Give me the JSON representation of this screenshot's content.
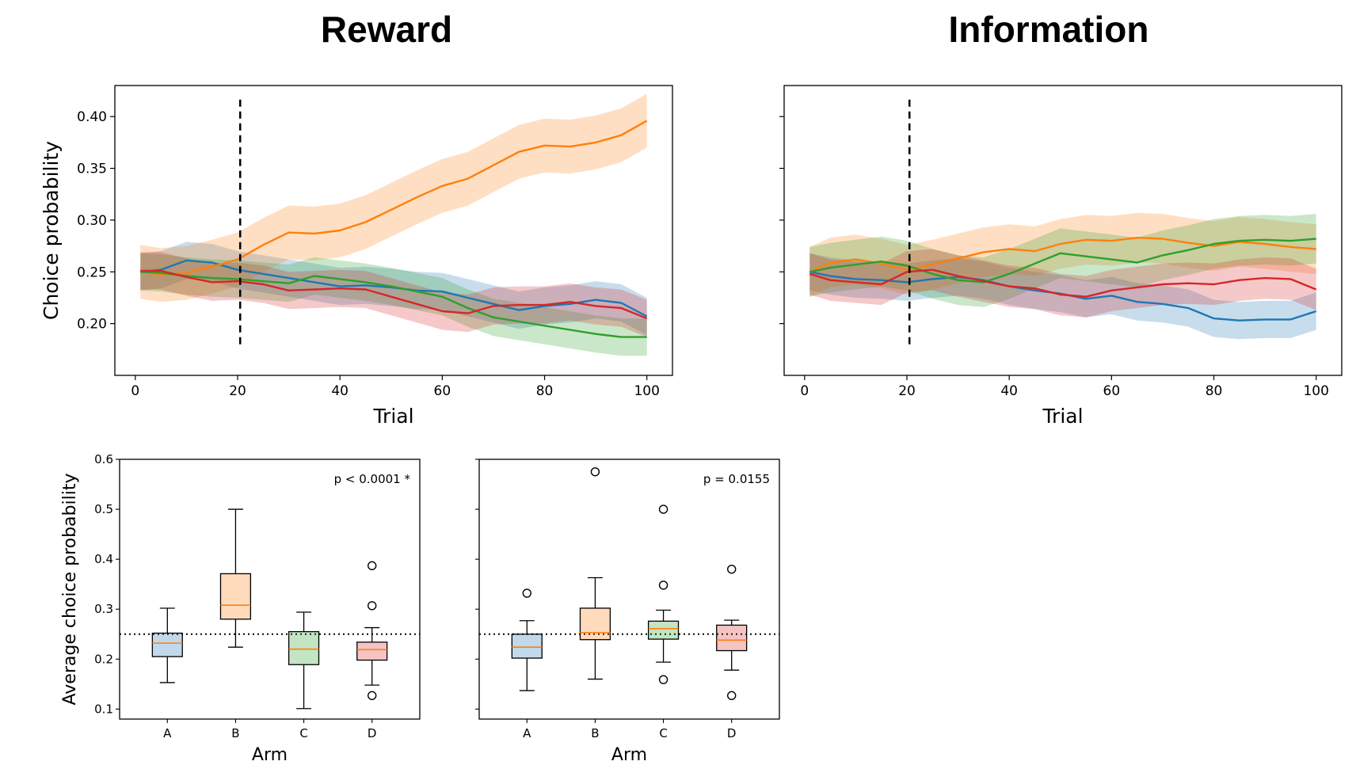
{
  "titles": {
    "left": "Reward",
    "right": "Information"
  },
  "colors": {
    "A": "#1f77b4",
    "B": "#ff7f0e",
    "C": "#2ca02c",
    "D": "#d62728"
  },
  "chart_data": [
    {
      "type": "line",
      "panel": "reward-lines",
      "title": "Reward",
      "xlabel": "Trial",
      "ylabel": "Choice probability",
      "xlim": [
        -4,
        105
      ],
      "ylim": [
        0.15,
        0.43
      ],
      "xticks": [
        0,
        20,
        40,
        60,
        80,
        100
      ],
      "yticks": [
        0.2,
        0.25,
        0.3,
        0.35,
        0.4
      ],
      "ytick_labels": [
        "0.20",
        "0.25",
        "0.30",
        "0.35",
        "0.40"
      ],
      "vline": {
        "x": 20.5,
        "style": "dashed",
        "y_range": [
          0.18,
          0.42
        ]
      },
      "series": [
        {
          "arm": "A",
          "color": "#1f77b4",
          "x": [
            1,
            5,
            10,
            15,
            20,
            25,
            30,
            35,
            40,
            45,
            50,
            55,
            60,
            65,
            70,
            75,
            80,
            85,
            90,
            95,
            100
          ],
          "y": [
            0.25,
            0.252,
            0.261,
            0.259,
            0.252,
            0.248,
            0.244,
            0.24,
            0.236,
            0.237,
            0.235,
            0.232,
            0.231,
            0.225,
            0.219,
            0.213,
            0.217,
            0.219,
            0.223,
            0.22,
            0.207
          ],
          "band": 0.018
        },
        {
          "arm": "B",
          "color": "#ff7f0e",
          "x": [
            1,
            5,
            10,
            15,
            20,
            25,
            30,
            35,
            40,
            45,
            50,
            55,
            60,
            65,
            70,
            75,
            80,
            85,
            90,
            95,
            100
          ],
          "y": [
            0.25,
            0.247,
            0.249,
            0.255,
            0.262,
            0.276,
            0.288,
            0.287,
            0.29,
            0.298,
            0.31,
            0.322,
            0.333,
            0.34,
            0.353,
            0.366,
            0.372,
            0.371,
            0.375,
            0.382,
            0.396
          ],
          "band": 0.026
        },
        {
          "arm": "C",
          "color": "#2ca02c",
          "x": [
            1,
            5,
            10,
            15,
            20,
            25,
            30,
            35,
            40,
            45,
            50,
            55,
            60,
            65,
            70,
            75,
            80,
            85,
            90,
            95,
            100
          ],
          "y": [
            0.25,
            0.249,
            0.246,
            0.244,
            0.243,
            0.241,
            0.239,
            0.246,
            0.243,
            0.24,
            0.236,
            0.231,
            0.226,
            0.215,
            0.206,
            0.202,
            0.198,
            0.194,
            0.19,
            0.187,
            0.187
          ],
          "band": 0.018
        },
        {
          "arm": "D",
          "color": "#d62728",
          "x": [
            1,
            5,
            10,
            15,
            20,
            25,
            30,
            35,
            40,
            45,
            50,
            55,
            60,
            65,
            70,
            75,
            80,
            85,
            90,
            95,
            100
          ],
          "y": [
            0.251,
            0.251,
            0.245,
            0.24,
            0.241,
            0.238,
            0.232,
            0.233,
            0.234,
            0.233,
            0.226,
            0.219,
            0.212,
            0.21,
            0.217,
            0.218,
            0.218,
            0.221,
            0.217,
            0.215,
            0.205
          ],
          "band": 0.018
        }
      ]
    },
    {
      "type": "line",
      "panel": "information-lines",
      "title": "Information",
      "xlabel": "Trial",
      "ylabel": "",
      "xlim": [
        -4,
        105
      ],
      "ylim": [
        0.15,
        0.43
      ],
      "xticks": [
        0,
        20,
        40,
        60,
        80,
        100
      ],
      "yticks": [
        0.2,
        0.25,
        0.3,
        0.35,
        0.4
      ],
      "vline": {
        "x": 20.5,
        "style": "dashed",
        "y_range": [
          0.18,
          0.42
        ]
      },
      "series": [
        {
          "arm": "A",
          "color": "#1f77b4",
          "x": [
            1,
            5,
            10,
            15,
            20,
            25,
            30,
            35,
            40,
            45,
            50,
            55,
            60,
            65,
            70,
            75,
            80,
            85,
            90,
            95,
            100
          ],
          "y": [
            0.25,
            0.246,
            0.243,
            0.242,
            0.24,
            0.243,
            0.245,
            0.242,
            0.236,
            0.232,
            0.229,
            0.224,
            0.227,
            0.221,
            0.219,
            0.215,
            0.205,
            0.203,
            0.204,
            0.204,
            0.212
          ],
          "band": 0.018
        },
        {
          "arm": "B",
          "color": "#ff7f0e",
          "x": [
            1,
            5,
            10,
            15,
            20,
            25,
            30,
            35,
            40,
            45,
            50,
            55,
            60,
            65,
            70,
            75,
            80,
            85,
            90,
            95,
            100
          ],
          "y": [
            0.25,
            0.259,
            0.262,
            0.258,
            0.252,
            0.257,
            0.263,
            0.269,
            0.272,
            0.27,
            0.277,
            0.281,
            0.28,
            0.283,
            0.282,
            0.278,
            0.275,
            0.279,
            0.277,
            0.274,
            0.272
          ],
          "band": 0.024
        },
        {
          "arm": "C",
          "color": "#2ca02c",
          "x": [
            1,
            5,
            10,
            15,
            20,
            25,
            30,
            35,
            40,
            45,
            50,
            55,
            60,
            65,
            70,
            75,
            80,
            85,
            90,
            95,
            100
          ],
          "y": [
            0.25,
            0.254,
            0.257,
            0.26,
            0.256,
            0.248,
            0.242,
            0.24,
            0.248,
            0.258,
            0.268,
            0.265,
            0.262,
            0.259,
            0.266,
            0.271,
            0.277,
            0.28,
            0.281,
            0.28,
            0.282
          ],
          "band": 0.024
        },
        {
          "arm": "D",
          "color": "#d62728",
          "x": [
            1,
            5,
            10,
            15,
            20,
            25,
            30,
            35,
            40,
            45,
            50,
            55,
            60,
            65,
            70,
            75,
            80,
            85,
            90,
            95,
            100
          ],
          "y": [
            0.248,
            0.242,
            0.24,
            0.238,
            0.25,
            0.252,
            0.246,
            0.241,
            0.236,
            0.234,
            0.228,
            0.226,
            0.232,
            0.235,
            0.238,
            0.239,
            0.238,
            0.242,
            0.244,
            0.243,
            0.233
          ],
          "band": 0.02
        }
      ]
    },
    {
      "type": "box",
      "panel": "reward-box",
      "xlabel": "Arm",
      "ylabel": "Average choice probability",
      "categories": [
        "A",
        "B",
        "C",
        "D"
      ],
      "ylim": [
        0.08,
        0.6
      ],
      "yticks": [
        0.1,
        0.2,
        0.3,
        0.4,
        0.5,
        0.6
      ],
      "ytick_labels": [
        "0.1",
        "0.2",
        "0.3",
        "0.4",
        "0.5",
        "0.6"
      ],
      "hline": {
        "y": 0.25,
        "style": "dotted"
      },
      "annotation": "p < 0.0001 *",
      "boxes": [
        {
          "arm": "A",
          "whisker_low": 0.153,
          "q1": 0.205,
          "median": 0.232,
          "q3": 0.252,
          "whisker_high": 0.302,
          "outliers": []
        },
        {
          "arm": "B",
          "whisker_low": 0.224,
          "q1": 0.28,
          "median": 0.308,
          "q3": 0.371,
          "whisker_high": 0.5,
          "outliers": []
        },
        {
          "arm": "C",
          "whisker_low": 0.101,
          "q1": 0.189,
          "median": 0.22,
          "q3": 0.255,
          "whisker_high": 0.294,
          "outliers": []
        },
        {
          "arm": "D",
          "whisker_low": 0.148,
          "q1": 0.198,
          "median": 0.219,
          "q3": 0.234,
          "whisker_high": 0.263,
          "outliers": [
            0.127,
            0.307,
            0.387
          ]
        }
      ]
    },
    {
      "type": "box",
      "panel": "information-box",
      "xlabel": "Arm",
      "ylabel": "",
      "categories": [
        "A",
        "B",
        "C",
        "D"
      ],
      "ylim": [
        0.08,
        0.6
      ],
      "yticks": [
        0.1,
        0.2,
        0.3,
        0.4,
        0.5,
        0.6
      ],
      "hline": {
        "y": 0.25,
        "style": "dotted"
      },
      "annotation": "p = 0.0155",
      "boxes": [
        {
          "arm": "A",
          "whisker_low": 0.137,
          "q1": 0.202,
          "median": 0.224,
          "q3": 0.25,
          "whisker_high": 0.277,
          "outliers": [
            0.332
          ]
        },
        {
          "arm": "B",
          "whisker_low": 0.16,
          "q1": 0.239,
          "median": 0.253,
          "q3": 0.302,
          "whisker_high": 0.363,
          "outliers": [
            0.575
          ]
        },
        {
          "arm": "C",
          "whisker_low": 0.194,
          "q1": 0.24,
          "median": 0.261,
          "q3": 0.276,
          "whisker_high": 0.298,
          "outliers": [
            0.159,
            0.348,
            0.5
          ]
        },
        {
          "arm": "D",
          "whisker_low": 0.178,
          "q1": 0.217,
          "median": 0.238,
          "q3": 0.268,
          "whisker_high": 0.278,
          "outliers": [
            0.127,
            0.38
          ]
        }
      ]
    }
  ]
}
